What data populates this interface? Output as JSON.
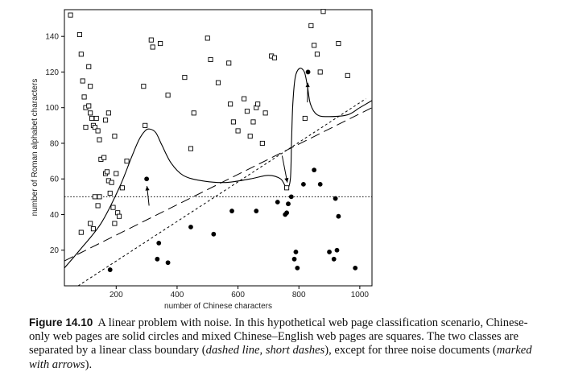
{
  "chart_data": {
    "type": "scatter",
    "xlabel": "number of Chinese characters",
    "ylabel": "number of Roman alphabet characters",
    "xlim": [
      30,
      1040
    ],
    "ylim": [
      0,
      155
    ],
    "xticks": [
      200,
      400,
      600,
      800,
      1000
    ],
    "yticks": [
      20,
      40,
      60,
      80,
      100,
      120,
      140
    ],
    "grid": false,
    "series": [
      {
        "name": "Chinese-only web pages",
        "marker": "solid-circle",
        "color": "#000000",
        "points": [
          [
            180,
            9
          ],
          [
            300,
            60
          ],
          [
            340,
            24
          ],
          [
            335,
            15
          ],
          [
            370,
            13
          ],
          [
            445,
            33
          ],
          [
            520,
            29
          ],
          [
            580,
            42
          ],
          [
            660,
            42
          ],
          [
            730,
            47
          ],
          [
            755,
            40
          ],
          [
            760,
            41
          ],
          [
            765,
            46
          ],
          [
            775,
            50
          ],
          [
            790,
            19
          ],
          [
            785,
            15
          ],
          [
            795,
            10
          ],
          [
            815,
            57
          ],
          [
            830,
            120
          ],
          [
            850,
            65
          ],
          [
            870,
            57
          ],
          [
            900,
            19
          ],
          [
            915,
            15
          ],
          [
            920,
            49
          ],
          [
            925,
            20
          ],
          [
            930,
            39
          ],
          [
            985,
            10
          ]
        ]
      },
      {
        "name": "mixed Chinese–English web pages",
        "marker": "open-square",
        "color": "#000000",
        "points": [
          [
            50,
            152
          ],
          [
            80,
            141
          ],
          [
            85,
            130
          ],
          [
            90,
            115
          ],
          [
            95,
            106
          ],
          [
            100,
            100
          ],
          [
            110,
            123
          ],
          [
            115,
            112
          ],
          [
            100,
            89
          ],
          [
            110,
            101
          ],
          [
            115,
            97
          ],
          [
            120,
            94
          ],
          [
            125,
            90
          ],
          [
            130,
            89
          ],
          [
            135,
            94
          ],
          [
            140,
            87
          ],
          [
            145,
            82
          ],
          [
            150,
            71
          ],
          [
            160,
            72
          ],
          [
            165,
            63
          ],
          [
            170,
            64
          ],
          [
            175,
            59
          ],
          [
            180,
            52
          ],
          [
            185,
            58
          ],
          [
            190,
            44
          ],
          [
            195,
            35
          ],
          [
            200,
            63
          ],
          [
            205,
            41
          ],
          [
            210,
            39
          ],
          [
            85,
            30
          ],
          [
            115,
            35
          ],
          [
            125,
            32
          ],
          [
            130,
            50
          ],
          [
            140,
            45
          ],
          [
            145,
            50
          ],
          [
            165,
            93
          ],
          [
            175,
            97
          ],
          [
            195,
            84
          ],
          [
            220,
            55
          ],
          [
            235,
            70
          ],
          [
            290,
            112
          ],
          [
            295,
            90
          ],
          [
            315,
            138
          ],
          [
            320,
            134
          ],
          [
            345,
            136
          ],
          [
            370,
            107
          ],
          [
            425,
            117
          ],
          [
            445,
            77
          ],
          [
            455,
            97
          ],
          [
            500,
            139
          ],
          [
            510,
            127
          ],
          [
            535,
            114
          ],
          [
            570,
            125
          ],
          [
            575,
            102
          ],
          [
            585,
            92
          ],
          [
            600,
            87
          ],
          [
            620,
            105
          ],
          [
            630,
            98
          ],
          [
            640,
            84
          ],
          [
            650,
            92
          ],
          [
            660,
            100
          ],
          [
            665,
            102
          ],
          [
            680,
            80
          ],
          [
            690,
            97
          ],
          [
            710,
            129
          ],
          [
            720,
            128
          ],
          [
            760,
            55
          ],
          [
            820,
            94
          ],
          [
            840,
            146
          ],
          [
            850,
            135
          ],
          [
            860,
            130
          ],
          [
            870,
            120
          ],
          [
            880,
            154
          ],
          [
            930,
            136
          ],
          [
            960,
            118
          ]
        ]
      }
    ],
    "curves": {
      "short_dashed_boundary": [
        [
          75,
          0
        ],
        [
          1020,
          105
        ]
      ],
      "long_dashed_line": [
        [
          30,
          14
        ],
        [
          1040,
          100
        ]
      ],
      "dotted_horizontal": [
        [
          30,
          50
        ],
        [
          1040,
          50
        ]
      ],
      "solid_boundary": [
        [
          30,
          10
        ],
        [
          80,
          20
        ],
        [
          150,
          35
        ],
        [
          210,
          55
        ],
        [
          250,
          72
        ],
        [
          275,
          82
        ],
        [
          295,
          87
        ],
        [
          310,
          88
        ],
        [
          330,
          86
        ],
        [
          350,
          79
        ],
        [
          380,
          69
        ],
        [
          420,
          62
        ],
        [
          480,
          59
        ],
        [
          560,
          58
        ],
        [
          640,
          60
        ],
        [
          700,
          62
        ],
        [
          740,
          60
        ],
        [
          760,
          55
        ],
        [
          772,
          60
        ],
        [
          776,
          82
        ],
        [
          780,
          102
        ],
        [
          788,
          117
        ],
        [
          802,
          122
        ],
        [
          818,
          120
        ],
        [
          828,
          112
        ],
        [
          838,
          102
        ],
        [
          860,
          96
        ],
        [
          900,
          95
        ],
        [
          960,
          96
        ],
        [
          1000,
          100
        ],
        [
          1040,
          104
        ]
      ]
    },
    "arrows": [
      {
        "from": [
          308,
          45
        ],
        "to": [
          301,
          56
        ]
      },
      {
        "from": [
          745,
          73
        ],
        "to": [
          762,
          58
        ]
      },
      {
        "from": [
          828,
          103
        ],
        "to": [
          829,
          114
        ]
      }
    ]
  },
  "caption": {
    "label": "Figure 14.10",
    "text_1": "A linear problem with noise. In this hypothetical web page classification scenario, Chinese-only web pages are solid circles and mixed Chinese–English web pages are squares. The two classes are separated by a linear class boundary (",
    "em_1": "dashed line, short dashes",
    "text_2": "), except for three noise documents (",
    "em_2": "marked with arrows",
    "text_3": ")."
  }
}
